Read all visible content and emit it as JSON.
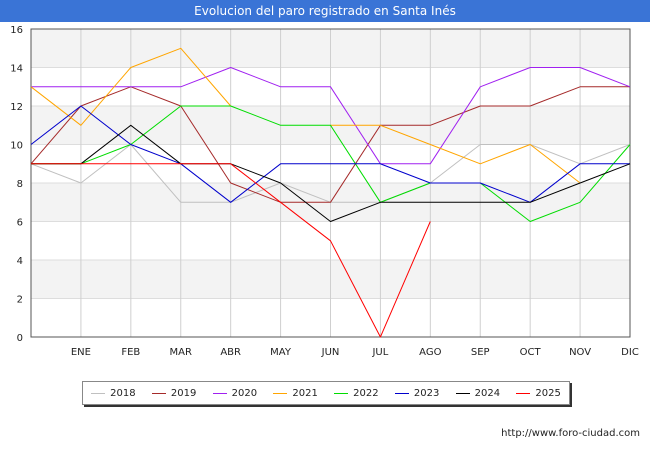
{
  "header": {
    "title": "Evolucion del paro registrado en Santa Inés"
  },
  "chart_data": {
    "type": "line",
    "title": "Evolucion del paro registrado en Santa Inés",
    "categories": [
      "",
      "ENE",
      "FEB",
      "MAR",
      "ABR",
      "MAY",
      "JUN",
      "JUL",
      "AGO",
      "SEP",
      "OCT",
      "NOV",
      "DIC"
    ],
    "ylim": [
      0,
      16
    ],
    "yticks": [
      0,
      2,
      4,
      6,
      8,
      10,
      12,
      14,
      16
    ],
    "grid": true,
    "legend_position": "bottom",
    "series": [
      {
        "name": "2018",
        "color": "#c0c0c0",
        "values": [
          9,
          8,
          10,
          7,
          7,
          8,
          7,
          7,
          8,
          10,
          10,
          9,
          10
        ]
      },
      {
        "name": "2019",
        "color": "#a52a2a",
        "values": [
          9,
          12,
          13,
          12,
          8,
          7,
          7,
          11,
          11,
          12,
          12,
          13,
          13
        ]
      },
      {
        "name": "2020",
        "color": "#a020f0",
        "values": [
          13,
          13,
          13,
          13,
          14,
          13,
          13,
          9,
          9,
          13,
          14,
          14,
          13
        ]
      },
      {
        "name": "2021",
        "color": "#ffa500",
        "values": [
          13,
          11,
          14,
          15,
          12,
          null,
          11,
          11,
          10,
          9,
          10,
          8,
          null
        ]
      },
      {
        "name": "2022",
        "color": "#00dd00",
        "values": [
          9,
          9,
          10,
          12,
          12,
          11,
          11,
          7,
          8,
          8,
          6,
          7,
          10
        ]
      },
      {
        "name": "2023",
        "color": "#0000cc",
        "values": [
          10,
          12,
          10,
          9,
          7,
          9,
          9,
          9,
          8,
          8,
          7,
          9,
          9
        ]
      },
      {
        "name": "2024",
        "color": "#000000",
        "values": [
          9,
          9,
          11,
          9,
          9,
          8,
          6,
          7,
          7,
          7,
          7,
          8,
          9
        ]
      },
      {
        "name": "2025",
        "color": "#ff0000",
        "values": [
          9,
          9,
          9,
          9,
          9,
          7,
          5,
          0,
          6,
          null,
          null,
          null,
          null
        ]
      }
    ]
  },
  "footer": {
    "url": "http://www.foro-ciudad.com"
  }
}
